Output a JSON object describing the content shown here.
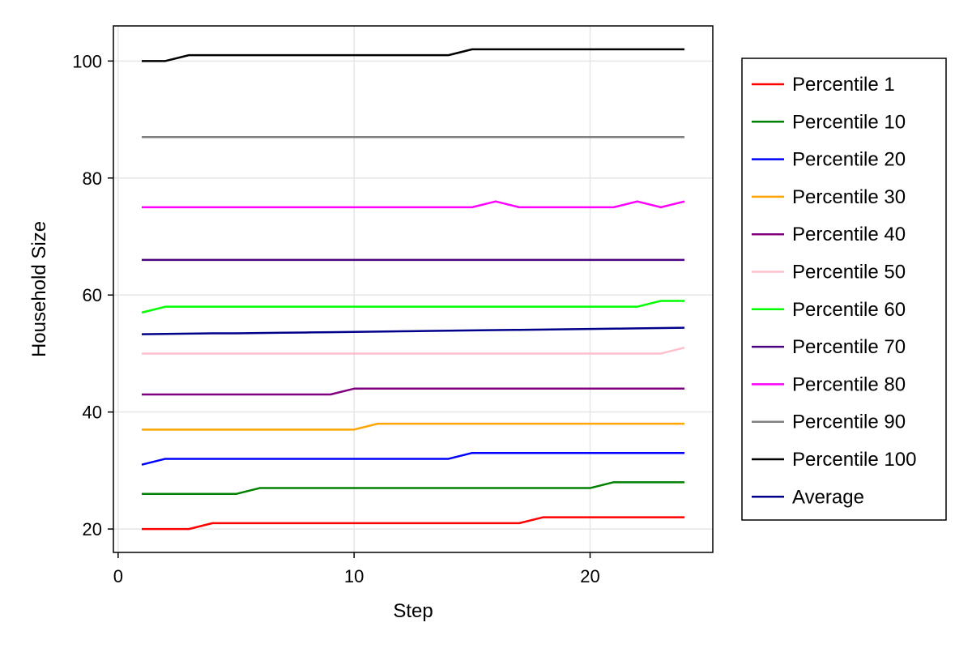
{
  "chart_data": {
    "type": "line",
    "title": "",
    "xlabel": "Step",
    "ylabel": "Household Size",
    "xlim": [
      -0.2,
      25.2
    ],
    "ylim": [
      16,
      106
    ],
    "xticks": [
      0,
      10,
      20
    ],
    "xtick_labels": [
      "0",
      "10",
      "20"
    ],
    "yticks": [
      20,
      40,
      60,
      80,
      100
    ],
    "ytick_labels": [
      "20",
      "40",
      "60",
      "80",
      "100"
    ],
    "grid": true,
    "legend_position": "right",
    "x": [
      1,
      2,
      3,
      4,
      5,
      6,
      7,
      8,
      9,
      10,
      11,
      12,
      13,
      14,
      15,
      16,
      17,
      18,
      19,
      20,
      21,
      22,
      23,
      24
    ],
    "series": [
      {
        "name": "Percentile 1",
        "color": "#ff0000",
        "values": [
          20,
          20,
          20,
          21,
          21,
          21,
          21,
          21,
          21,
          21,
          21,
          21,
          21,
          21,
          21,
          21,
          21,
          22,
          22,
          22,
          22,
          22,
          22,
          22
        ]
      },
      {
        "name": "Percentile 10",
        "color": "#008000",
        "values": [
          26,
          26,
          26,
          26,
          26,
          27,
          27,
          27,
          27,
          27,
          27,
          27,
          27,
          27,
          27,
          27,
          27,
          27,
          27,
          27,
          28,
          28,
          28,
          28
        ]
      },
      {
        "name": "Percentile 20",
        "color": "#0000ff",
        "values": [
          31,
          32,
          32,
          32,
          32,
          32,
          32,
          32,
          32,
          32,
          32,
          32,
          32,
          32,
          33,
          33,
          33,
          33,
          33,
          33,
          33,
          33,
          33,
          33
        ]
      },
      {
        "name": "Percentile 30",
        "color": "#ffa500",
        "values": [
          37,
          37,
          37,
          37,
          37,
          37,
          37,
          37,
          37,
          37,
          38,
          38,
          38,
          38,
          38,
          38,
          38,
          38,
          38,
          38,
          38,
          38,
          38,
          38
        ]
      },
      {
        "name": "Percentile 40",
        "color": "#800080",
        "values": [
          43,
          43,
          43,
          43,
          43,
          43,
          43,
          43,
          43,
          44,
          44,
          44,
          44,
          44,
          44,
          44,
          44,
          44,
          44,
          44,
          44,
          44,
          44,
          44
        ]
      },
      {
        "name": "Percentile 50",
        "color": "#ffc0cb",
        "values": [
          50,
          50,
          50,
          50,
          50,
          50,
          50,
          50,
          50,
          50,
          50,
          50,
          50,
          50,
          50,
          50,
          50,
          50,
          50,
          50,
          50,
          50,
          50,
          51
        ]
      },
      {
        "name": "Percentile 60",
        "color": "#00ff00",
        "values": [
          57,
          58,
          58,
          58,
          58,
          58,
          58,
          58,
          58,
          58,
          58,
          58,
          58,
          58,
          58,
          58,
          58,
          58,
          58,
          58,
          58,
          58,
          59,
          59
        ]
      },
      {
        "name": "Percentile 70",
        "color": "#4b0082",
        "values": [
          66,
          66,
          66,
          66,
          66,
          66,
          66,
          66,
          66,
          66,
          66,
          66,
          66,
          66,
          66,
          66,
          66,
          66,
          66,
          66,
          66,
          66,
          66,
          66
        ]
      },
      {
        "name": "Percentile 80",
        "color": "#ff00ff",
        "values": [
          75,
          75,
          75,
          75,
          75,
          75,
          75,
          75,
          75,
          75,
          75,
          75,
          75,
          75,
          75,
          76,
          75,
          75,
          75,
          75,
          75,
          76,
          75,
          76
        ]
      },
      {
        "name": "Percentile 90",
        "color": "#808080",
        "values": [
          87,
          87,
          87,
          87,
          87,
          87,
          87,
          87,
          87,
          87,
          87,
          87,
          87,
          87,
          87,
          87,
          87,
          87,
          87,
          87,
          87,
          87,
          87,
          87
        ]
      },
      {
        "name": "Percentile 100",
        "color": "#000000",
        "values": [
          100,
          100,
          101,
          101,
          101,
          101,
          101,
          101,
          101,
          101,
          101,
          101,
          101,
          101,
          102,
          102,
          102,
          102,
          102,
          102,
          102,
          102,
          102,
          102
        ]
      },
      {
        "name": "Average",
        "color": "#00008b",
        "values": [
          53.3,
          53.35,
          53.4,
          53.45,
          53.45,
          53.5,
          53.55,
          53.6,
          53.65,
          53.7,
          53.75,
          53.8,
          53.85,
          53.9,
          53.95,
          54.0,
          54.05,
          54.1,
          54.15,
          54.2,
          54.25,
          54.3,
          54.35,
          54.4
        ]
      }
    ]
  }
}
